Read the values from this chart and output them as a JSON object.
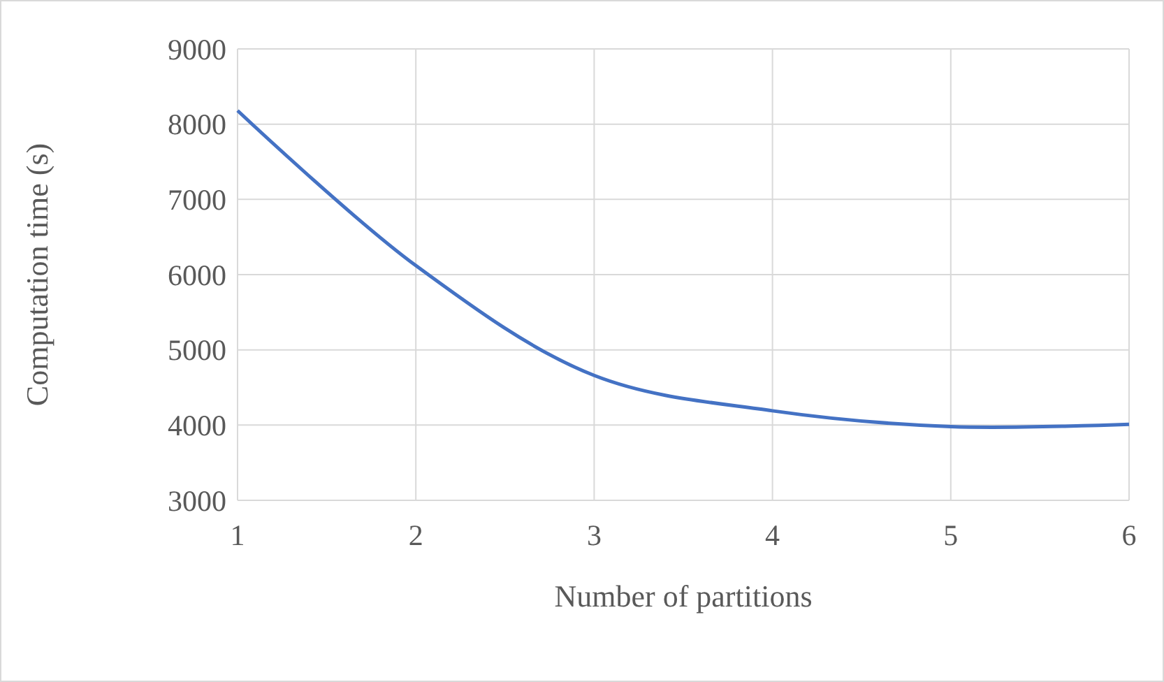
{
  "chart_data": {
    "type": "line",
    "xlabel": "Number of partitions",
    "ylabel": "Computation time (s)",
    "x": [
      1,
      2,
      3,
      4,
      5,
      6
    ],
    "series": [
      {
        "color": "#4472c4",
        "values": [
          8180,
          6120,
          4660,
          4190,
          3980,
          4010
        ]
      }
    ],
    "xlim": [
      1,
      6
    ],
    "xticks": [
      1,
      2,
      3,
      4,
      5,
      6
    ],
    "ylim": [
      3000,
      9000
    ],
    "yticks": [
      3000,
      4000,
      5000,
      6000,
      7000,
      8000,
      9000
    ],
    "grid": true,
    "marker": "none",
    "line_style": "solid"
  }
}
